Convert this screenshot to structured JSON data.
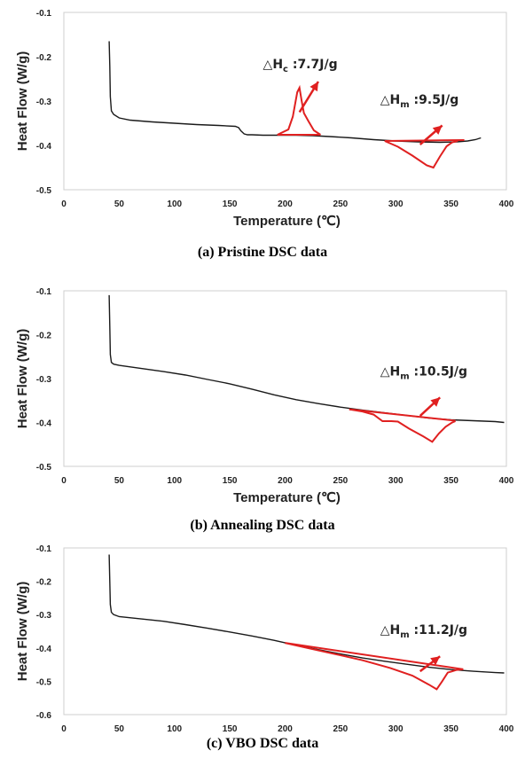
{
  "chart_data": [
    {
      "type": "line",
      "caption": "(a) Pristine DSC data",
      "xlabel": "Temperature (℃)",
      "ylabel": "Heat Flow (W/g)",
      "xlim": [
        0,
        400
      ],
      "ylim": [
        -0.5,
        -0.1
      ],
      "xticks": [
        0,
        50,
        100,
        150,
        200,
        250,
        300,
        350,
        400
      ],
      "yticks": [
        -0.1,
        -0.2,
        -0.3,
        -0.4,
        -0.5
      ],
      "series": [
        {
          "color": "#1a1a1a",
          "x": [
            41,
            41.5,
            42,
            43,
            45,
            50,
            60,
            80,
            100,
            120,
            140,
            155,
            158,
            160,
            163,
            166,
            170,
            180,
            195,
            210,
            225,
            240,
            260,
            280,
            300,
            320,
            340,
            355,
            365,
            372,
            377
          ],
          "y": [
            -0.165,
            -0.22,
            -0.29,
            -0.322,
            -0.33,
            -0.338,
            -0.343,
            -0.347,
            -0.35,
            -0.353,
            -0.355,
            -0.357,
            -0.36,
            -0.367,
            -0.374,
            -0.376,
            -0.376,
            -0.377,
            -0.377,
            -0.377,
            -0.378,
            -0.38,
            -0.383,
            -0.387,
            -0.39,
            -0.392,
            -0.393,
            -0.392,
            -0.39,
            -0.387,
            -0.383
          ]
        }
      ],
      "peaks": [
        {
          "kind": "exo",
          "color": "#e02020",
          "outline": [
            [
              193,
              -0.376
            ],
            [
              203,
              -0.364
            ],
            [
              207,
              -0.335
            ],
            [
              211,
              -0.28
            ],
            [
              213,
              -0.27
            ],
            [
              215,
              -0.3
            ],
            [
              217,
              -0.327
            ],
            [
              221,
              -0.345
            ],
            [
              226,
              -0.366
            ],
            [
              232,
              -0.376
            ]
          ],
          "baseline": [
            [
              193,
              -0.376
            ],
            [
              232,
              -0.376
            ]
          ],
          "arrow_from": [
            213,
            -0.325
          ],
          "arrow_to": [
            230,
            -0.256
          ],
          "label_main": "△H",
          "label_sub": "c",
          "label_rest": " :7.7J/g",
          "label_at": [
            180,
            -0.226
          ]
        },
        {
          "kind": "endo",
          "color": "#e02020",
          "outline": [
            [
              290,
              -0.39
            ],
            [
              302,
              -0.403
            ],
            [
              315,
              -0.423
            ],
            [
              328,
              -0.445
            ],
            [
              334,
              -0.45
            ],
            [
              340,
              -0.425
            ],
            [
              346,
              -0.402
            ],
            [
              351,
              -0.393
            ],
            [
              356,
              -0.39
            ]
          ],
          "baseline": [
            [
              290,
              -0.39
            ],
            [
              362,
              -0.388
            ]
          ],
          "arrow_from": [
            322,
            -0.398
          ],
          "arrow_to": [
            342,
            -0.355
          ],
          "label_main": "△H",
          "label_sub": "m",
          "label_rest": " :9.5J/g",
          "label_at": [
            286,
            -0.306
          ]
        }
      ]
    },
    {
      "type": "line",
      "caption": "(b) Annealing DSC data",
      "xlabel": "Temperature (℃)",
      "ylabel": "Heat Flow (W/g)",
      "xlim": [
        0,
        400
      ],
      "ylim": [
        -0.5,
        -0.1
      ],
      "xticks": [
        0,
        50,
        100,
        150,
        200,
        250,
        300,
        350,
        400
      ],
      "yticks": [
        -0.1,
        -0.2,
        -0.3,
        -0.4,
        -0.5
      ],
      "series": [
        {
          "color": "#1a1a1a",
          "x": [
            41,
            41.5,
            42,
            43,
            45,
            50,
            70,
            90,
            110,
            130,
            150,
            170,
            190,
            210,
            230,
            250,
            270,
            290,
            310,
            330,
            350,
            370,
            390,
            398
          ],
          "y": [
            -0.11,
            -0.18,
            -0.245,
            -0.263,
            -0.267,
            -0.27,
            -0.277,
            -0.284,
            -0.292,
            -0.302,
            -0.312,
            -0.324,
            -0.337,
            -0.348,
            -0.357,
            -0.365,
            -0.372,
            -0.378,
            -0.384,
            -0.39,
            -0.394,
            -0.396,
            -0.398,
            -0.4
          ]
        }
      ],
      "peaks": [
        {
          "kind": "endo",
          "color": "#e02020",
          "outline": [
            [
              258,
              -0.37
            ],
            [
              270,
              -0.375
            ],
            [
              280,
              -0.382
            ],
            [
              288,
              -0.397
            ],
            [
              296,
              -0.397
            ],
            [
              302,
              -0.398
            ],
            [
              312,
              -0.414
            ],
            [
              325,
              -0.432
            ],
            [
              333,
              -0.444
            ],
            [
              339,
              -0.425
            ],
            [
              345,
              -0.41
            ],
            [
              351,
              -0.4
            ],
            [
              354,
              -0.397
            ]
          ],
          "baseline": [
            [
              258,
              -0.37
            ],
            [
              354,
              -0.396
            ]
          ],
          "arrow_from": [
            322,
            -0.385
          ],
          "arrow_to": [
            340,
            -0.343
          ],
          "label_main": "△H",
          "label_sub": "m",
          "label_rest": " :10.5J/g",
          "label_at": [
            286,
            -0.293
          ]
        }
      ]
    },
    {
      "type": "line",
      "caption": "(c) VBO DSC data",
      "xlabel": "Temperature (℃)",
      "ylabel": "Heat Flow (W/g)",
      "xlim": [
        0,
        400
      ],
      "ylim": [
        -0.6,
        -0.1
      ],
      "xticks": [
        0,
        50,
        100,
        150,
        200,
        250,
        300,
        350,
        400
      ],
      "yticks": [
        -0.1,
        -0.2,
        -0.3,
        -0.4,
        -0.5,
        -0.6
      ],
      "series": [
        {
          "color": "#1a1a1a",
          "x": [
            41,
            41.5,
            42,
            43,
            45,
            50,
            70,
            90,
            110,
            130,
            150,
            170,
            190,
            210,
            230,
            250,
            270,
            290,
            310,
            330,
            350,
            370,
            390,
            398
          ],
          "y": [
            -0.12,
            -0.2,
            -0.27,
            -0.293,
            -0.3,
            -0.306,
            -0.313,
            -0.32,
            -0.33,
            -0.341,
            -0.352,
            -0.364,
            -0.377,
            -0.392,
            -0.405,
            -0.418,
            -0.43,
            -0.44,
            -0.449,
            -0.458,
            -0.465,
            -0.47,
            -0.474,
            -0.475
          ]
        }
      ],
      "peaks": [
        {
          "kind": "endo",
          "color": "#e02020",
          "outline": [
            [
              200,
              -0.385
            ],
            [
              220,
              -0.4
            ],
            [
              245,
              -0.418
            ],
            [
              270,
              -0.437
            ],
            [
              295,
              -0.46
            ],
            [
              315,
              -0.483
            ],
            [
              330,
              -0.51
            ],
            [
              337,
              -0.524
            ],
            [
              342,
              -0.5
            ],
            [
              347,
              -0.474
            ],
            [
              355,
              -0.466
            ],
            [
              361,
              -0.464
            ]
          ],
          "baseline": [
            [
              200,
              -0.385
            ],
            [
              361,
              -0.464
            ]
          ],
          "arrow_from": [
            322,
            -0.47
          ],
          "arrow_to": [
            340,
            -0.425
          ],
          "label_main": "△H",
          "label_sub": "m",
          "label_rest": " :11.2J/g",
          "label_at": [
            286,
            -0.358
          ]
        }
      ]
    }
  ]
}
